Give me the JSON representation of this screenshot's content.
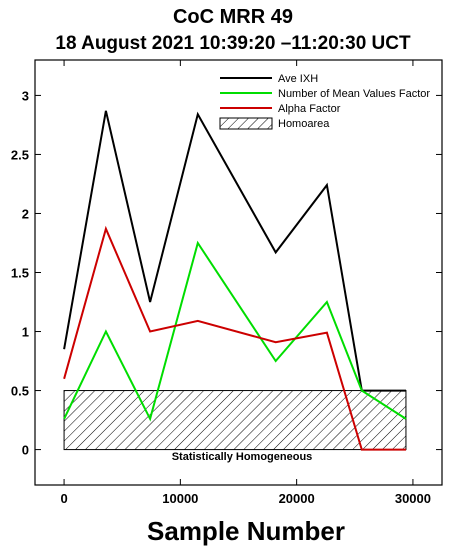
{
  "chart_data": {
    "type": "line",
    "title": "CoC MRR 49",
    "subtitle": "18 August 2021 10:39:20 –11:20:30 UCT",
    "xlabel": "Sample Number",
    "ylabel": "",
    "xlim": [
      -2500,
      32500
    ],
    "ylim": [
      -0.3,
      3.3
    ],
    "x_ticks": [
      0,
      10000,
      20000,
      30000
    ],
    "y_ticks": [
      0,
      0.5,
      1,
      1.5,
      2,
      2.5,
      3
    ],
    "x_tick_labels": [
      "0",
      "10000",
      "20000",
      "30000"
    ],
    "y_tick_labels": [
      "0",
      "0.5",
      "1",
      "1.5",
      "2",
      "2.5",
      "3"
    ],
    "grid": false,
    "legend_position": "top-right",
    "series": [
      {
        "name": "Ave IXH",
        "color": "#000000",
        "x": [
          0,
          3600,
          7400,
          11500,
          18200,
          22600,
          25600,
          29400
        ],
        "y": [
          0.85,
          2.87,
          1.25,
          2.84,
          1.67,
          2.24,
          0.5,
          0.5
        ]
      },
      {
        "name": "Number of Mean Values Factor",
        "color": "#00dd00",
        "x": [
          0,
          3600,
          7400,
          11500,
          18200,
          22600,
          25600,
          29400
        ],
        "y": [
          0.26,
          1.0,
          0.26,
          1.75,
          0.75,
          1.25,
          0.5,
          0.26
        ]
      },
      {
        "name": "Alpha Factor",
        "color": "#cc0000",
        "x": [
          0,
          3600,
          7400,
          11500,
          18200,
          22600,
          25600,
          29400
        ],
        "y": [
          0.6,
          1.87,
          1.0,
          1.09,
          0.91,
          0.99,
          0.0,
          0.0
        ]
      }
    ],
    "region": {
      "name": "Homoarea",
      "x": [
        0,
        29400
      ],
      "y": [
        0,
        0.5
      ]
    },
    "annotations": [
      {
        "text": "Statistically Homogeneous",
        "x": 14700,
        "y": -0.05
      }
    ]
  }
}
